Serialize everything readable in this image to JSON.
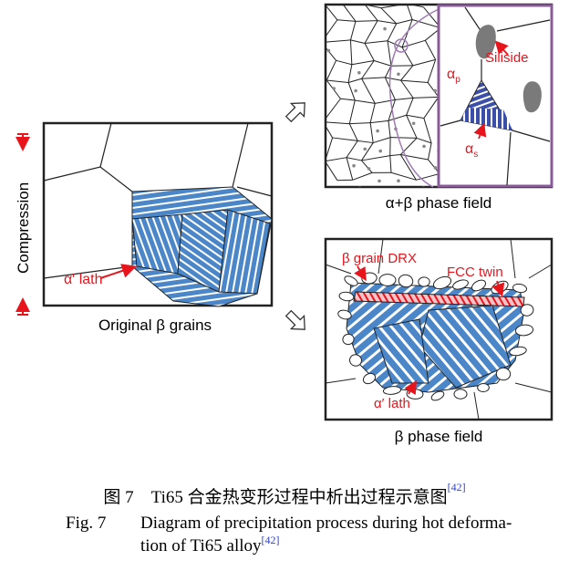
{
  "figure": {
    "left_panel": {
      "label": "Original β grains",
      "axis_label": "Compression",
      "lath_label": "α′ lath"
    },
    "top_right_panel": {
      "label": "α+β phase field",
      "alpha_p_label": "α",
      "alpha_p_sub": "p",
      "alpha_s_label": "α",
      "alpha_s_sub": "s",
      "siliside_label": "Siliside"
    },
    "bottom_right_panel": {
      "label": "β phase field",
      "drx_label": "β grain DRX",
      "twin_label": "FCC twin",
      "lath_label": "α′ lath"
    },
    "colors": {
      "lath_blue": "#4a86c8",
      "annotation_red": "#e8141c",
      "inset_purple": "#8a5a9a",
      "siliside_gray": "#7a7a7a"
    }
  },
  "caption": {
    "cn": "图 7　Ti65 合金热变形过程中析出过程示意图",
    "cn_ref": "[42]",
    "en_prefix": "Fig. 7",
    "en_line1": "Diagram of precipitation process during hot deforma-",
    "en_line2": "tion of Ti65 alloy",
    "en_ref": "[42]"
  }
}
